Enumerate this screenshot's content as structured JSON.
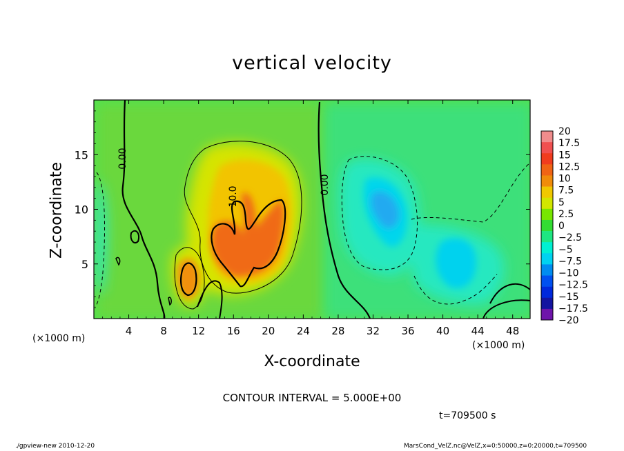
{
  "window": {
    "footer_left": "./gpview-new  2010-12-20",
    "footer_right": "MarsCond_VelZ.nc@VelZ,x=0:50000,z=0:20000,t=709500"
  },
  "chart_data": {
    "type": "heatmap",
    "title": "vertical velocity",
    "xlabel": "X-coordinate",
    "ylabel": "Z-coordinate",
    "x_unit": "(×1000 m)",
    "y_unit": "(×1000 m)",
    "xlim": [
      0,
      50
    ],
    "ylim": [
      0,
      20
    ],
    "x_ticks": [
      4,
      8,
      12,
      16,
      20,
      24,
      28,
      32,
      36,
      40,
      44,
      48
    ],
    "y_ticks": [
      5,
      10,
      15
    ],
    "contour_interval": "CONTOUR INTERVAL = 5.000E+00",
    "time": "t=709500 s",
    "contour_labels": [
      "0.00",
      "10.0",
      "0.00"
    ],
    "colorbar": {
      "labels": [
        "20",
        "17.5",
        "15",
        "12.5",
        "10",
        "7.5",
        "5",
        "2.5",
        "0",
        "−2.5",
        "−5",
        "−7.5",
        "−10",
        "−12.5",
        "−15",
        "−17.5",
        "−20"
      ],
      "colors": [
        "#f08c8c",
        "#f05050",
        "#f03c1e",
        "#f06414",
        "#f08c0a",
        "#f0c800",
        "#d2e600",
        "#78e600",
        "#32dc32",
        "#1ee682",
        "#00f0d2",
        "#00d2f0",
        "#008cf0",
        "#0050f0",
        "#0028dc",
        "#1414a0",
        "#6e14aa"
      ]
    }
  }
}
